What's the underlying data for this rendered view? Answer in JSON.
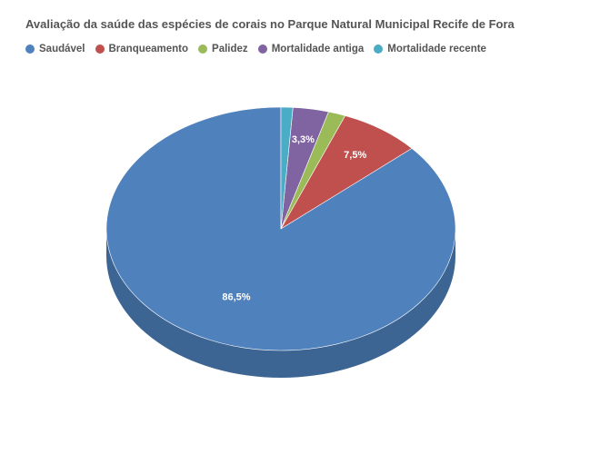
{
  "chart_data": {
    "type": "pie",
    "title": "Avaliação da saúde das espécies de corais no Parque Natural Municipal Recife de Fora",
    "categories": [
      "Saudável",
      "Branqueamento",
      "Palidez",
      "Mortalidade antiga",
      "Mortalidade recente"
    ],
    "values": [
      86.5,
      7.5,
      1.6,
      3.3,
      1.1
    ],
    "value_labels": [
      "86,5%",
      "7,5%",
      "",
      "3,3%",
      ""
    ],
    "colors": [
      "#4f81bd",
      "#c0504d",
      "#9bbb59",
      "#8064a2",
      "#4bacc6"
    ],
    "side_colors": [
      "#3d6593",
      "#963e3c",
      "#789145",
      "#644e7e",
      "#3a869a"
    ],
    "legend_position": "top-left",
    "style": "3d"
  }
}
